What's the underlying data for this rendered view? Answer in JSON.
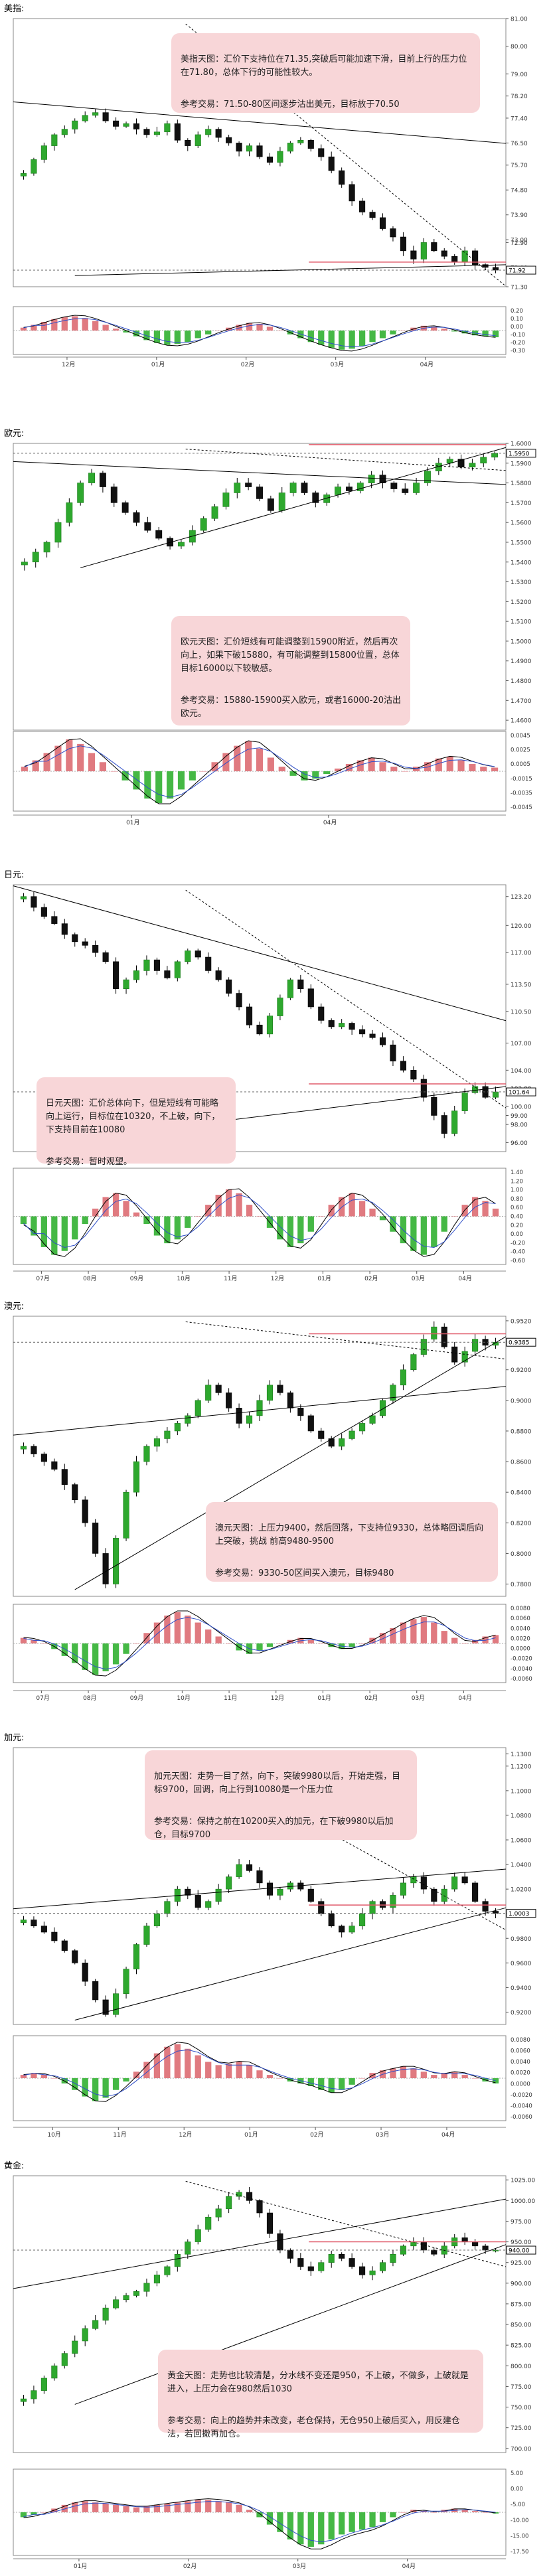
{
  "sections": [
    {
      "id": "usd",
      "title": "美指:",
      "note": [
        "美指天图：汇价下支持位在71.35,突破后可能加速下滑，目前上行的压力位在71.80，总体下行的可能性较大。",
        "参考交易：71.50-80区间逐步沽出美元，目标放于70.50"
      ],
      "chart_data": {
        "type": "candlestick",
        "yticks": [
          "81.00",
          "80.00",
          "79.00",
          "78.20",
          "77.40",
          "76.50",
          "75.70",
          "74.80",
          "73.90",
          "73.00",
          "72.90",
          "72.00",
          "71.30"
        ],
        "ylim": [
          71.3,
          81.0
        ],
        "last_value": "71.92",
        "months": [
          "12月",
          "01月",
          "02月",
          "03月",
          "04月"
        ],
        "macd_ticks": [
          "0.20",
          "0.10",
          "0.00",
          "-0.10",
          "-0.20",
          "-0.30"
        ],
        "path": [
          75.4,
          75.9,
          76.4,
          76.8,
          77.0,
          77.3,
          77.5,
          77.6,
          77.3,
          77.1,
          77.2,
          77.0,
          76.8,
          76.9,
          77.2,
          76.6,
          76.4,
          76.8,
          77.0,
          76.7,
          76.5,
          76.2,
          76.4,
          76.0,
          75.8,
          76.2,
          76.5,
          76.6,
          76.3,
          76.0,
          75.5,
          75.0,
          74.4,
          74.0,
          73.8,
          73.4,
          73.1,
          72.6,
          72.3,
          72.9,
          72.6,
          72.4,
          72.2,
          72.6,
          72.1,
          72.0,
          71.9
        ],
        "macd_bars": [
          0.03,
          0.06,
          0.09,
          0.12,
          0.14,
          0.15,
          0.13,
          0.1,
          0.06,
          0.02,
          -0.02,
          -0.06,
          -0.1,
          -0.13,
          -0.15,
          -0.14,
          -0.12,
          -0.08,
          -0.04,
          0.0,
          0.03,
          0.06,
          0.08,
          0.07,
          0.04,
          0.0,
          -0.04,
          -0.08,
          -0.12,
          -0.15,
          -0.18,
          -0.2,
          -0.19,
          -0.16,
          -0.12,
          -0.08,
          -0.04,
          0.0,
          0.03,
          0.05,
          0.04,
          0.02,
          -0.01,
          -0.03,
          -0.05,
          -0.06,
          -0.07
        ]
      }
    },
    {
      "id": "eur",
      "title": "欧元:",
      "note": [
        "欧元天图：汇价短线有可能调整到15900附近，然后再次向上，如果下破15880，有可能调整到15800位置，总体目标16000以下较敏感。",
        "参考交易：15880-15900买入欧元，或者16000-20沽出欧元。"
      ],
      "chart_data": {
        "type": "candlestick",
        "yticks": [
          "1.6000",
          "1.5950",
          "1.5900",
          "1.5800",
          "1.5700",
          "1.5600",
          "1.5500",
          "1.5400",
          "1.5300",
          "1.5200",
          "1.5100",
          "1.5000",
          "1.4900",
          "1.4800",
          "1.4700",
          "1.4600"
        ],
        "ylim": [
          1.455,
          1.6
        ],
        "last_value": "1.5950",
        "months": [
          "01月",
          "04月"
        ],
        "macd_ticks": [
          "0.0045",
          "0.0025",
          "0.0005",
          "-0.0015",
          "-0.0035",
          "-0.0045"
        ],
        "path": [
          1.54,
          1.545,
          1.55,
          1.56,
          1.57,
          1.58,
          1.585,
          1.578,
          1.57,
          1.565,
          1.56,
          1.556,
          1.552,
          1.548,
          1.55,
          1.556,
          1.562,
          1.568,
          1.575,
          1.58,
          1.578,
          1.572,
          1.566,
          1.575,
          1.58,
          1.575,
          1.57,
          1.574,
          1.578,
          1.576,
          1.58,
          1.584,
          1.58,
          1.577,
          1.575,
          1.58,
          1.586,
          1.59,
          1.592,
          1.588,
          1.59,
          1.593,
          1.595
        ],
        "macd_bars": [
          0.0005,
          0.0012,
          0.002,
          0.0028,
          0.0035,
          0.003,
          0.002,
          0.001,
          0.0,
          -0.001,
          -0.002,
          -0.003,
          -0.0035,
          -0.003,
          -0.002,
          -0.001,
          0.0,
          0.001,
          0.002,
          0.0028,
          0.0033,
          0.0025,
          0.0015,
          0.0005,
          -0.0005,
          -0.001,
          -0.0008,
          -0.0003,
          0.0003,
          0.0008,
          0.0012,
          0.0015,
          0.001,
          0.0005,
          0.0,
          0.0005,
          0.001,
          0.0014,
          0.0016,
          0.0012,
          0.0008,
          0.0005,
          0.0004
        ]
      }
    },
    {
      "id": "jpy",
      "title": "日元:",
      "note": [
        "日元天图：汇价总体向下，但是短线有可能略向上运行，目标位在10320，不上破，向下，下支持目前在10080",
        "参考交易：暂时观望。"
      ],
      "chart_data": {
        "type": "candlestick",
        "yticks": [
          "123.20",
          "120.00",
          "117.00",
          "113.50",
          "110.50",
          "107.00",
          "104.00",
          "102.00",
          "100.00",
          "99.00",
          "98.00",
          "96.00"
        ],
        "ylim": [
          95.0,
          124.5
        ],
        "last_value": "101.64",
        "months": [
          "07月",
          "08月",
          "09月",
          "10月",
          "11月",
          "12月",
          "01月",
          "02月",
          "03月",
          "04月"
        ],
        "macd_ticks": [
          "1.40",
          "1.20",
          "1.00",
          "0.80",
          "0.60",
          "0.40",
          "0.20",
          "0.00",
          "-0.20",
          "-0.40",
          "-0.60"
        ],
        "path": [
          123.2,
          122.0,
          121.0,
          120.2,
          119.0,
          118.2,
          117.8,
          117.0,
          116.0,
          113.0,
          114.0,
          115.0,
          116.2,
          115.0,
          114.2,
          116.0,
          117.2,
          116.5,
          115.0,
          114.0,
          112.5,
          111.0,
          109.0,
          108.0,
          110.0,
          112.0,
          114.0,
          113.0,
          111.0,
          109.5,
          108.8,
          109.2,
          108.5,
          108.0,
          107.6,
          106.8,
          105.0,
          104.0,
          103.0,
          101.0,
          99.0,
          97.0,
          99.5,
          101.5,
          102.2,
          101.0,
          101.6
        ],
        "macd_bars": [
          -0.1,
          -0.25,
          -0.4,
          -0.5,
          -0.45,
          -0.3,
          -0.1,
          0.1,
          0.25,
          0.3,
          0.2,
          0.05,
          -0.1,
          -0.25,
          -0.35,
          -0.3,
          -0.15,
          0.0,
          0.15,
          0.28,
          0.35,
          0.3,
          0.15,
          0.0,
          -0.15,
          -0.3,
          -0.4,
          -0.35,
          -0.2,
          0.0,
          0.15,
          0.25,
          0.3,
          0.2,
          0.1,
          -0.05,
          -0.2,
          -0.35,
          -0.45,
          -0.5,
          -0.4,
          -0.2,
          0.0,
          0.15,
          0.25,
          0.2,
          0.1
        ]
      }
    },
    {
      "id": "aud",
      "title": "澳元:",
      "note": [
        "澳元天图：上压力9400，然后回落，下支持位9330，总体略回调后向上突破，挑战 前高9480-9500",
        "参考交易：9330-50区间买入澳元，目标9480"
      ],
      "chart_data": {
        "type": "candlestick",
        "yticks": [
          "0.9520",
          "0.9385",
          "0.9200",
          "0.9000",
          "0.8800",
          "0.8600",
          "0.8400",
          "0.8200",
          "0.8000",
          "0.7800"
        ],
        "ylim": [
          0.772,
          0.955
        ],
        "last_value": "0.9385",
        "months": [
          "07月",
          "08月",
          "09月",
          "10月",
          "11月",
          "12月",
          "01月",
          "02月",
          "03月",
          "04月"
        ],
        "macd_ticks": [
          "0.0080",
          "0.0060",
          "0.0040",
          "0.0020",
          "0.0000",
          "-0.0020",
          "-0.0040",
          "-0.0060"
        ],
        "path": [
          0.87,
          0.865,
          0.86,
          0.855,
          0.845,
          0.835,
          0.82,
          0.8,
          0.78,
          0.81,
          0.84,
          0.86,
          0.87,
          0.875,
          0.88,
          0.885,
          0.89,
          0.9,
          0.91,
          0.905,
          0.895,
          0.885,
          0.89,
          0.9,
          0.91,
          0.905,
          0.895,
          0.89,
          0.88,
          0.875,
          0.87,
          0.875,
          0.88,
          0.885,
          0.89,
          0.9,
          0.91,
          0.92,
          0.93,
          0.94,
          0.948,
          0.935,
          0.925,
          0.932,
          0.94,
          0.936,
          0.938
        ],
        "macd_bars": [
          0.0008,
          0.0005,
          0.0,
          -0.0008,
          -0.0018,
          -0.0028,
          -0.0038,
          -0.0045,
          -0.004,
          -0.003,
          -0.0015,
          0.0,
          0.0015,
          0.003,
          0.004,
          0.0045,
          0.004,
          0.003,
          0.002,
          0.001,
          0.0,
          -0.001,
          -0.0015,
          -0.001,
          -0.0005,
          0.0,
          0.0005,
          0.0008,
          0.0005,
          0.0,
          -0.0005,
          -0.0008,
          -0.0005,
          0.0,
          0.0008,
          0.0015,
          0.0022,
          0.003,
          0.0035,
          0.0038,
          0.003,
          0.0018,
          0.0008,
          0.0,
          0.0005,
          0.001,
          0.0012
        ]
      }
    },
    {
      "id": "cad",
      "title": "加元:",
      "note": [
        "加元天图：走势一目了然，向下，突破9980以后，开始走强，目标9700，回调，向上行到10080是一个压力位",
        "参考交易：保持之前在10200买入的加元，在下破9980以后加仓，目标9700"
      ],
      "chart_data": {
        "type": "candlestick",
        "yticks": [
          "1.1300",
          "1.1200",
          "1.1000",
          "1.0800",
          "1.0600",
          "1.0400",
          "1.0200",
          "1.0003",
          "0.9800",
          "0.9600",
          "0.9400",
          "0.9200"
        ],
        "ylim": [
          0.91,
          1.135
        ],
        "last_value": "1.0003",
        "months": [
          "10月",
          "11月",
          "12月",
          "01月",
          "02月",
          "03月",
          "04月"
        ],
        "macd_ticks": [
          "0.0080",
          "0.0060",
          "0.0040",
          "0.0020",
          "0.0000",
          "-0.0020",
          "-0.0040",
          "-0.0060"
        ],
        "path": [
          0.995,
          0.99,
          0.985,
          0.978,
          0.97,
          0.96,
          0.945,
          0.93,
          0.918,
          0.935,
          0.955,
          0.975,
          0.99,
          1.0,
          1.01,
          1.02,
          1.015,
          1.005,
          1.01,
          1.02,
          1.03,
          1.04,
          1.035,
          1.025,
          1.015,
          1.02,
          1.025,
          1.02,
          1.01,
          1.0,
          0.99,
          0.985,
          0.99,
          1.0,
          1.01,
          1.005,
          1.015,
          1.025,
          1.03,
          1.02,
          1.01,
          1.02,
          1.03,
          1.025,
          1.01,
          1.002,
          1.0003
        ],
        "macd_bars": [
          0.0005,
          0.0008,
          0.0005,
          0.0,
          -0.0008,
          -0.0018,
          -0.0028,
          -0.0035,
          -0.003,
          -0.0018,
          -0.0005,
          0.001,
          0.0025,
          0.0038,
          0.0048,
          0.0052,
          0.0045,
          0.0035,
          0.0025,
          0.002,
          0.0022,
          0.0025,
          0.002,
          0.0012,
          0.0005,
          0.0,
          -0.0005,
          -0.0008,
          -0.0012,
          -0.0018,
          -0.0022,
          -0.0018,
          -0.001,
          0.0,
          0.0008,
          0.0012,
          0.0015,
          0.0018,
          0.0015,
          0.001,
          0.0005,
          0.0008,
          0.001,
          0.0005,
          0.0,
          -0.0005,
          -0.0008
        ]
      }
    },
    {
      "id": "gold",
      "title": "黄金:",
      "note": [
        "黄金天图：走势也比较清楚，分水线不变还是950，不上破，不做多，上破就是进入，上压力会在980然后1030",
        "参考交易：向上的趋势并未改变，老仓保持，无仓950上破后买入，用反建仓法，若回撤再加仓。"
      ],
      "chart_data": {
        "type": "candlestick",
        "yticks": [
          "1025.00",
          "1000.00",
          "975.00",
          "950.00",
          "940.00",
          "925.00",
          "900.00",
          "875.00",
          "850.00",
          "825.00",
          "800.00",
          "775.00",
          "750.00",
          "725.00",
          "700.00"
        ],
        "ylim": [
          695.0,
          1030.0
        ],
        "last_value": "940.00",
        "months": [
          "01月",
          "02月",
          "03月",
          "04月"
        ],
        "macd_ticks": [
          "5.00",
          "0.00",
          "-5.00",
          "-10.00",
          "-15.00",
          "-17.50"
        ],
        "path": [
          760,
          770,
          785,
          800,
          815,
          830,
          845,
          855,
          870,
          880,
          885,
          890,
          900,
          910,
          920,
          935,
          950,
          965,
          980,
          990,
          1005,
          1010,
          1000,
          985,
          960,
          940,
          930,
          920,
          915,
          925,
          935,
          930,
          920,
          910,
          915,
          925,
          935,
          945,
          950,
          940,
          935,
          945,
          955,
          950,
          945,
          940,
          940
        ],
        "macd_bars": [
          -2,
          -1,
          0,
          1.5,
          3,
          4,
          4.5,
          4,
          3.5,
          3,
          2.5,
          2,
          2.5,
          3,
          3.5,
          4,
          4.5,
          5,
          5,
          4.5,
          4,
          3,
          1,
          -2,
          -5,
          -8,
          -11,
          -13,
          -14,
          -13,
          -11,
          -9,
          -8,
          -7,
          -6,
          -4,
          -2,
          0,
          1,
          0.5,
          0,
          1,
          1.5,
          1,
          0.5,
          0,
          -0.5
        ]
      }
    }
  ]
}
